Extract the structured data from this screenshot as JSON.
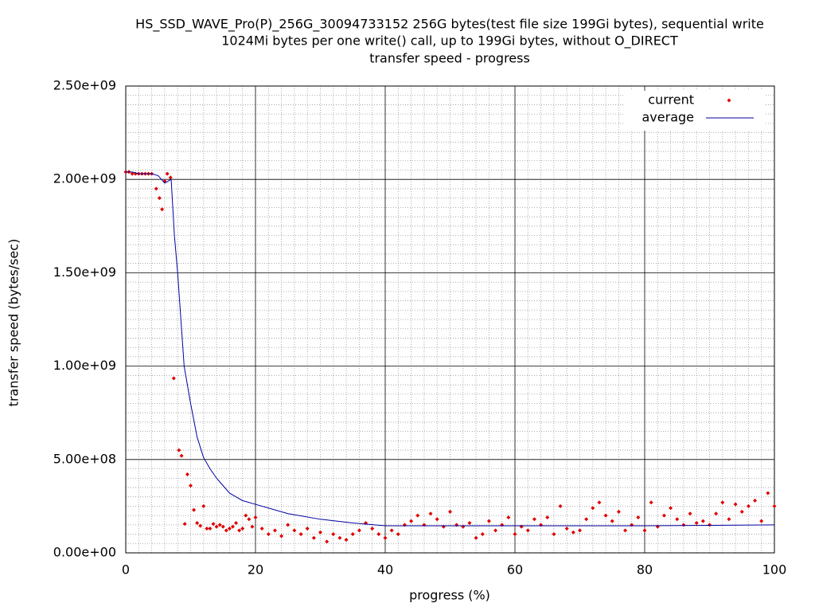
{
  "chart_data": {
    "type": "scatter_line",
    "title": [
      "HS_SSD_WAVE_Pro(P)_256G_30094733152 256G bytes(test file size 199Gi bytes), sequential write",
      "1024Mi bytes per one write() call, up to 199Gi bytes, without O_DIRECT",
      "transfer speed - progress"
    ],
    "x_label": "progress (%)",
    "y_label": "transfer speed (bytes/sec)",
    "xlim": [
      0,
      100
    ],
    "xticks": [
      0,
      20,
      40,
      60,
      80,
      100
    ],
    "ylim": [
      0,
      2500000000.0
    ],
    "yticks": [
      {
        "value": 0,
        "label": "0.00e+00"
      },
      {
        "value": 500000000.0,
        "label": "5.00e+08"
      },
      {
        "value": 1000000000.0,
        "label": "1.00e+09"
      },
      {
        "value": 1500000000.0,
        "label": "1.50e+09"
      },
      {
        "value": 2000000000.0,
        "label": "2.00e+09"
      },
      {
        "value": 2500000000.0,
        "label": "2.50e+09"
      }
    ],
    "grid": true,
    "minor_grid": {
      "x": 10,
      "y": 10
    },
    "legend": "top-right",
    "series": [
      {
        "name": "current",
        "style": "points",
        "color": "#e00000",
        "x": [
          0,
          0.5,
          1,
          1.5,
          2,
          2.5,
          3,
          3.5,
          4,
          4.7,
          5.2,
          5.6,
          6.0,
          6.4,
          6.9,
          7.4,
          8.2,
          8.6,
          9.1,
          9.5,
          10,
          10.5,
          11,
          11.5,
          12,
          12.5,
          13,
          13.5,
          14,
          14.5,
          15,
          15.5,
          16,
          16.5,
          17,
          17.5,
          18,
          18.5,
          19,
          19.5,
          20,
          21,
          22,
          23,
          24,
          25,
          26,
          27,
          28,
          29,
          30,
          31,
          32,
          33,
          34,
          35,
          36,
          37,
          38,
          39,
          40,
          41,
          42,
          43,
          44,
          45,
          46,
          47,
          48,
          49,
          50,
          51,
          52,
          53,
          54,
          55,
          56,
          57,
          58,
          59,
          60,
          61,
          62,
          63,
          64,
          65,
          66,
          67,
          68,
          69,
          70,
          71,
          72,
          73,
          74,
          75,
          76,
          77,
          78,
          79,
          80,
          81,
          82,
          83,
          84,
          85,
          86,
          87,
          88,
          89,
          90,
          91,
          92,
          93,
          94,
          95,
          96,
          97,
          98,
          99,
          100
        ],
        "values": [
          2040000000.0,
          2040000000.0,
          2030000000.0,
          2030000000.0,
          2030000000.0,
          2030000000.0,
          2030000000.0,
          2030000000.0,
          2030000000.0,
          1950000000.0,
          1900000000.0,
          1840000000.0,
          1990000000.0,
          2030000000.0,
          2010000000.0,
          935000000.0,
          550000000.0,
          520000000.0,
          155000000.0,
          420000000.0,
          360000000.0,
          230000000.0,
          160000000.0,
          145000000.0,
          250000000.0,
          130000000.0,
          130000000.0,
          155000000.0,
          140000000.0,
          150000000.0,
          140000000.0,
          120000000.0,
          130000000.0,
          140000000.0,
          160000000.0,
          120000000.0,
          130000000.0,
          200000000.0,
          180000000.0,
          140000000.0,
          190000000.0,
          130000000.0,
          100000000.0,
          120000000.0,
          90000000.0,
          150000000.0,
          120000000.0,
          100000000.0,
          130000000.0,
          80000000.0,
          110000000.0,
          60000000.0,
          100000000.0,
          80000000.0,
          70000000.0,
          100000000.0,
          120000000.0,
          160000000.0,
          130000000.0,
          100000000.0,
          80000000.0,
          120000000.0,
          100000000.0,
          150000000.0,
          170000000.0,
          200000000.0,
          150000000.0,
          210000000.0,
          180000000.0,
          140000000.0,
          220000000.0,
          150000000.0,
          140000000.0,
          160000000.0,
          80000000.0,
          100000000.0,
          170000000.0,
          120000000.0,
          150000000.0,
          190000000.0,
          100000000.0,
          140000000.0,
          120000000.0,
          180000000.0,
          150000000.0,
          190000000.0,
          100000000.0,
          250000000.0,
          130000000.0,
          110000000.0,
          120000000.0,
          180000000.0,
          240000000.0,
          270000000.0,
          200000000.0,
          170000000.0,
          220000000.0,
          120000000.0,
          150000000.0,
          190000000.0,
          120000000.0,
          270000000.0,
          140000000.0,
          200000000.0,
          240000000.0,
          180000000.0,
          150000000.0,
          210000000.0,
          160000000.0,
          170000000.0,
          150000000.0,
          210000000.0,
          270000000.0,
          180000000.0,
          260000000.0,
          220000000.0,
          250000000.0,
          280000000.0,
          170000000.0,
          320000000.0,
          250000000.0
        ]
      },
      {
        "name": "average",
        "style": "line",
        "color": "#0000a0",
        "x": [
          0,
          1,
          2,
          3,
          4,
          5,
          5.5,
          6,
          6.5,
          7,
          7.5,
          8,
          8.5,
          9,
          10,
          11,
          12,
          13,
          14,
          15,
          16,
          17,
          18,
          20,
          25,
          30,
          35,
          40,
          50,
          60,
          70,
          80,
          90,
          100
        ],
        "values": [
          2040000000.0,
          2040000000.0,
          2030000000.0,
          2030000000.0,
          2030000000.0,
          2020000000.0,
          2000000000.0,
          1980000000.0,
          1990000000.0,
          2000000000.0,
          1700000000.0,
          1500000000.0,
          1250000000.0,
          1000000000.0,
          800000000.0,
          620000000.0,
          510000000.0,
          450000000.0,
          400000000.0,
          360000000.0,
          320000000.0,
          300000000.0,
          280000000.0,
          260000000.0,
          210000000.0,
          180000000.0,
          160000000.0,
          145000000.0,
          145000000.0,
          145000000.0,
          145000000.0,
          145000000.0,
          147000000.0,
          150000000.0
        ]
      }
    ]
  }
}
